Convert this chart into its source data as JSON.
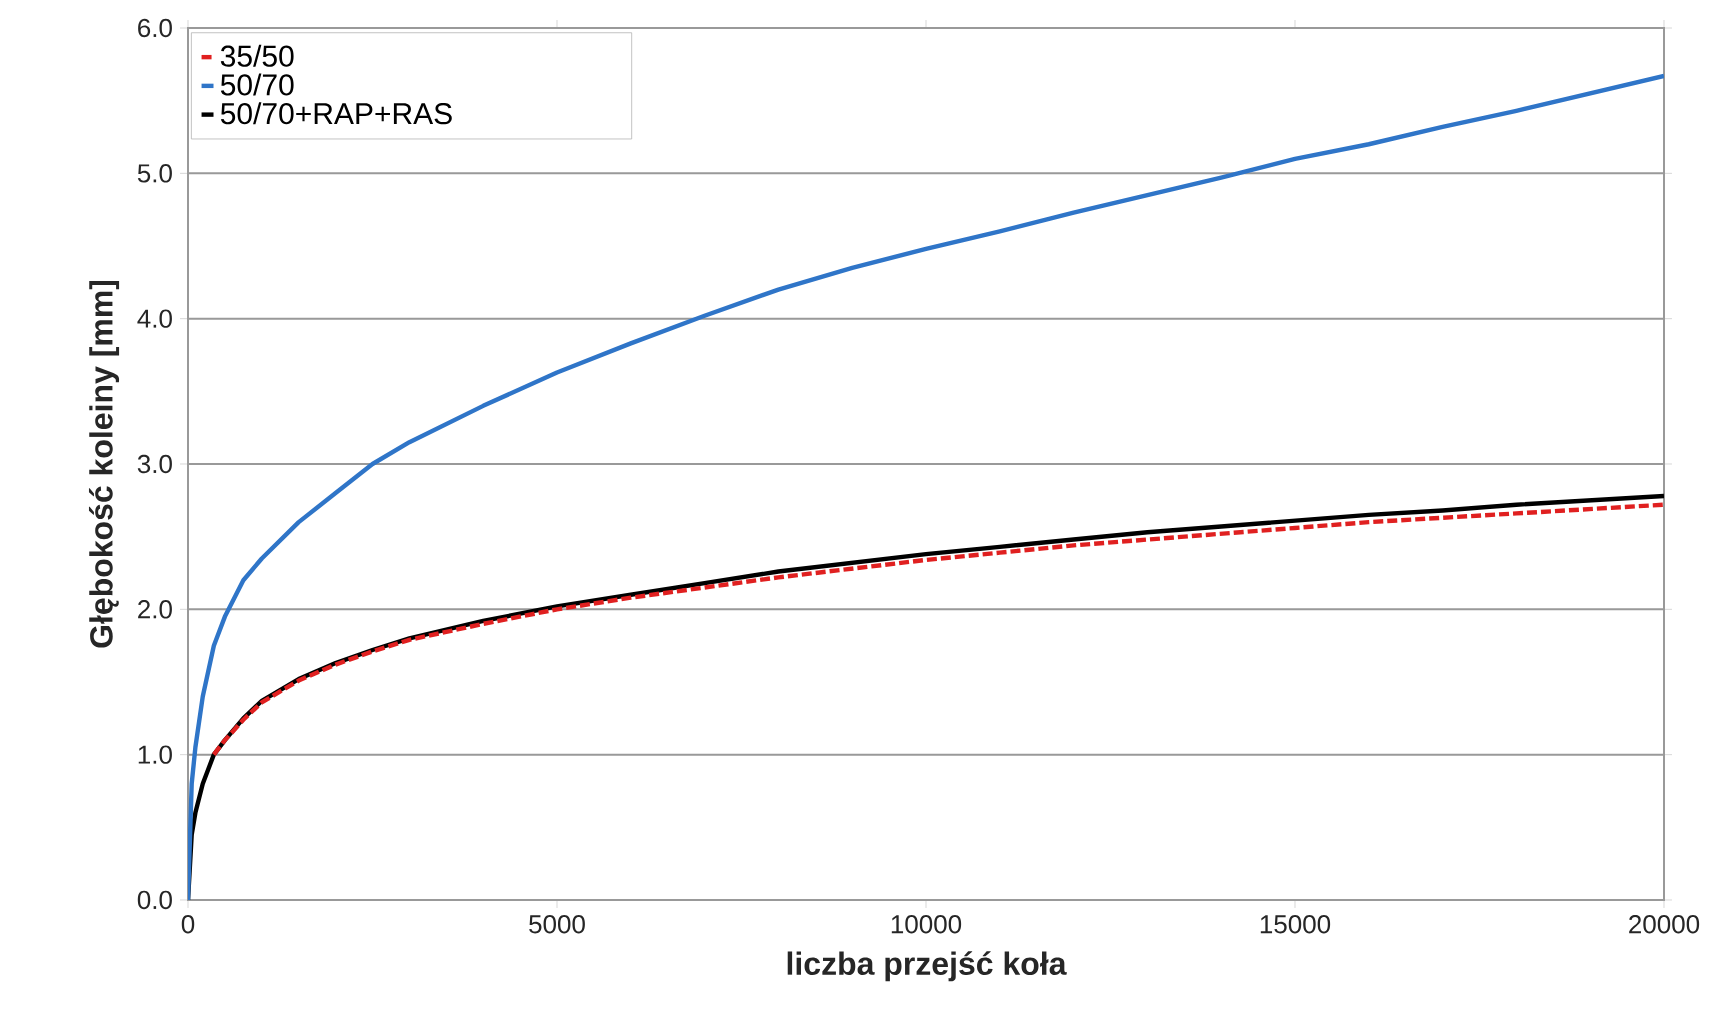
{
  "chart_data": {
    "type": "line",
    "xlabel": "liczba przejść koła",
    "ylabel": "Głębokość koleiny [mm]",
    "x": [
      0,
      50,
      100,
      200,
      350,
      500,
      750,
      1000,
      1500,
      2000,
      2500,
      3000,
      4000,
      5000,
      6000,
      7000,
      8000,
      9000,
      10000,
      11000,
      12000,
      13000,
      14000,
      15000,
      16000,
      17000,
      18000,
      19000,
      20000
    ],
    "series": [
      {
        "name": "35/50",
        "color": "#e02020",
        "line_style": "dashed",
        "values": [
          null,
          null,
          null,
          null,
          1.0,
          1.1,
          1.24,
          1.36,
          1.51,
          1.62,
          1.71,
          1.79,
          1.9,
          2.0,
          2.08,
          2.15,
          2.22,
          2.28,
          2.34,
          2.39,
          2.44,
          2.48,
          2.52,
          2.56,
          2.6,
          2.63,
          2.66,
          2.69,
          2.72
        ]
      },
      {
        "name": "50/70",
        "color": "#2f75c8",
        "line_style": "solid",
        "values": [
          0,
          0.8,
          1.05,
          1.4,
          1.75,
          1.95,
          2.2,
          2.35,
          2.6,
          2.8,
          3.0,
          3.15,
          3.4,
          3.63,
          3.83,
          4.02,
          4.2,
          4.35,
          4.48,
          4.6,
          4.73,
          4.85,
          4.97,
          5.1,
          5.2,
          5.32,
          5.43,
          5.55,
          5.67
        ]
      },
      {
        "name": "50/70+RAP+RAS",
        "color": "#000000",
        "line_style": "solid",
        "values": [
          0,
          0.45,
          0.6,
          0.8,
          1.0,
          1.1,
          1.25,
          1.37,
          1.52,
          1.63,
          1.72,
          1.8,
          1.92,
          2.02,
          2.1,
          2.18,
          2.26,
          2.32,
          2.38,
          2.43,
          2.48,
          2.53,
          2.57,
          2.61,
          2.65,
          2.68,
          2.72,
          2.75,
          2.78
        ]
      }
    ],
    "xlim": [
      0,
      20000
    ],
    "ylim": [
      0,
      6
    ],
    "xticks": [
      0,
      5000,
      10000,
      15000,
      20000
    ],
    "yticks": [
      {
        "value": 0,
        "label": "0.0"
      },
      {
        "value": 1,
        "label": "1.0"
      },
      {
        "value": 2,
        "label": "2.0"
      },
      {
        "value": 3,
        "label": "3.0"
      },
      {
        "value": 4,
        "label": "4.0"
      },
      {
        "value": 5,
        "label": "5.0"
      },
      {
        "value": 6,
        "label": "6.0"
      }
    ],
    "grid": "y",
    "legend": "top left",
    "marker": "none"
  }
}
